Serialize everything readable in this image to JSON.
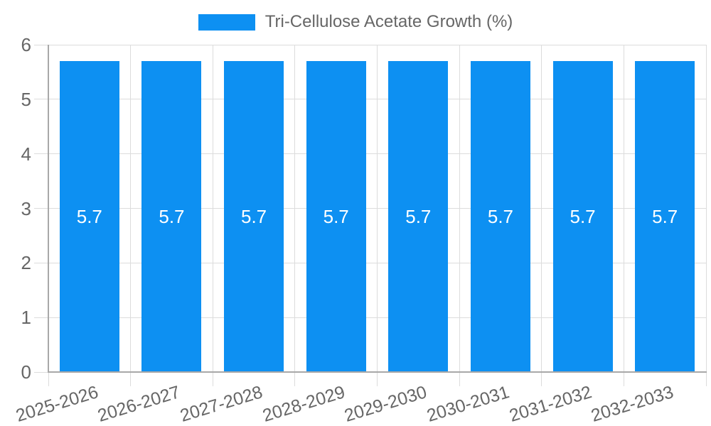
{
  "legend": {
    "label": "Tri-Cellulose Acetate Growth (%)"
  },
  "chart_data": {
    "type": "bar",
    "title": "",
    "categories": [
      "2025-2026",
      "2026-2027",
      "2027-2028",
      "2028-2029",
      "2029-2030",
      "2030-2031",
      "2031-2032",
      "2032-2033"
    ],
    "series": [
      {
        "name": "Tri-Cellulose Acetate Growth (%)",
        "values": [
          5.7,
          5.7,
          5.7,
          5.7,
          5.7,
          5.7,
          5.7,
          5.7
        ]
      }
    ],
    "value_labels": [
      "5.7",
      "5.7",
      "5.7",
      "5.7",
      "5.7",
      "5.7",
      "5.7",
      "5.7"
    ],
    "xlabel": "",
    "ylabel": "",
    "ylim": [
      0,
      6
    ],
    "yticks": [
      0,
      1,
      2,
      3,
      4,
      5,
      6
    ],
    "grid": true,
    "legend_position": "top-center",
    "bar_label_position": "center"
  },
  "colors": {
    "bar": "#0d90f2",
    "axis_line": "#a8a8a8",
    "gridline": "#dcdcdc",
    "tick_text": "#666666",
    "legend_text": "#666666",
    "value_label_text": "#ffffff",
    "background": "#ffffff"
  }
}
